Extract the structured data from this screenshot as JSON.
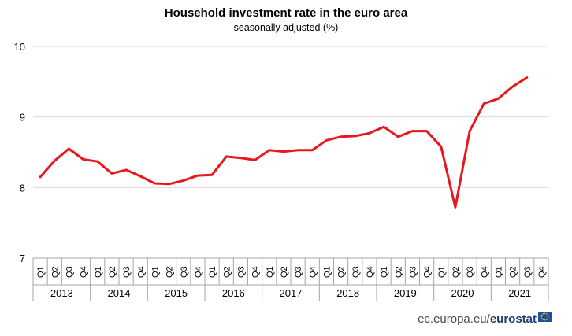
{
  "chart_data": {
    "type": "line",
    "title": "Household investment rate in the euro area",
    "subtitle": "seasonally adjusted (%)",
    "xlabel": "",
    "ylabel": "",
    "ylim": [
      7,
      10
    ],
    "yticks": [
      "7",
      "8",
      "9",
      "10"
    ],
    "grid": "horizontal",
    "line_color": "#e8171e",
    "quarters": [
      "Q1",
      "Q2",
      "Q3",
      "Q4"
    ],
    "years": [
      "2013",
      "2014",
      "2015",
      "2016",
      "2017",
      "2018",
      "2019",
      "2020",
      "2021"
    ],
    "series": [
      {
        "values": [
          8.15,
          8.38,
          8.55,
          8.4,
          8.37,
          8.2,
          8.25,
          8.16,
          8.06,
          8.05,
          8.1,
          8.17,
          8.18,
          8.44,
          8.42,
          8.39,
          8.53,
          8.51,
          8.53,
          8.53,
          8.67,
          8.72,
          8.73,
          8.77,
          8.86,
          8.72,
          8.8,
          8.8,
          8.58,
          7.72,
          8.8,
          9.19,
          9.26,
          9.43,
          9.56,
          null
        ]
      }
    ]
  },
  "source": {
    "site": "ec.europa.eu/",
    "brand": "eurostat"
  },
  "colors": {
    "eu_flag": "#1f4fa0",
    "eu_stars": "#ffcc00"
  }
}
